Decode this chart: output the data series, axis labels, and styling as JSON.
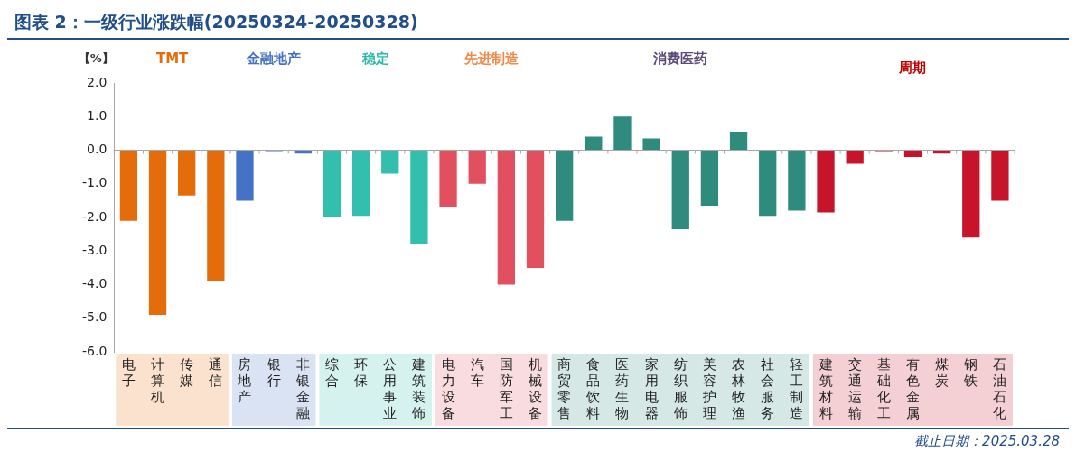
{
  "chart_data": {
    "type": "bar",
    "title": "图表 2：一级行业涨跌幅(20250324-20250328)",
    "ylabel": "【%】",
    "categories": [
      "电子",
      "计算机",
      "传媒",
      "通信",
      "房地产",
      "银行",
      "非银金融",
      "综合",
      "环保",
      "公用事业",
      "建筑装饰",
      "电力设备",
      "汽车",
      "国防军工",
      "机械设备",
      "商贸零售",
      "食品饮料",
      "医药生物",
      "家用电器",
      "纺织服饰",
      "美容护理",
      "农林牧渔",
      "社会服务",
      "轻工制造",
      "建筑材料",
      "交通运输",
      "基础化工",
      "有色金属",
      "煤炭",
      "钢铁",
      "石油石化"
    ],
    "values": [
      -2.1,
      -4.9,
      -1.35,
      -3.9,
      -1.5,
      -0.03,
      -0.1,
      -2.0,
      -1.95,
      -0.7,
      -2.8,
      -1.7,
      -1.0,
      -4.0,
      -3.5,
      -2.1,
      0.4,
      1.0,
      0.35,
      -2.35,
      -1.65,
      0.55,
      -1.95,
      -1.8,
      -1.85,
      -0.4,
      -0.03,
      -0.2,
      -0.1,
      -2.6,
      -1.5
    ],
    "colors": [
      "#e46c0a",
      "#e46c0a",
      "#e46c0a",
      "#e46c0a",
      "#4472c4",
      "#4472c4",
      "#4472c4",
      "#33bfae",
      "#33bfae",
      "#33bfae",
      "#33bfae",
      "#e2505f",
      "#e2505f",
      "#e2505f",
      "#e2505f",
      "#2e8b7e",
      "#2e8b7e",
      "#2e8b7e",
      "#2e8b7e",
      "#2e8b7e",
      "#2e8b7e",
      "#2e8b7e",
      "#2e8b7e",
      "#2e8b7e",
      "#c8142a",
      "#c8142a",
      "#c8142a",
      "#c8142a",
      "#c8142a",
      "#c8142a",
      "#c8142a"
    ],
    "ylim": [
      -6,
      2
    ],
    "yticks": [
      {
        "value": -6,
        "label": "-6.0"
      },
      {
        "value": -5,
        "label": "-5.0"
      },
      {
        "value": -4,
        "label": "-4.0"
      },
      {
        "value": -3,
        "label": "-3.0"
      },
      {
        "value": -2,
        "label": "-2.0"
      },
      {
        "value": -1,
        "label": "-1.0"
      },
      {
        "value": 0,
        "label": "0.0"
      },
      {
        "value": 1,
        "label": "1.0"
      },
      {
        "value": 2,
        "label": "2.0"
      }
    ],
    "ref_lines": [
      {
        "axis": "y",
        "value": 0,
        "color": "#a6a6a6"
      }
    ],
    "grid": false,
    "legend": false,
    "annotations": [
      "TMT",
      "金融地产",
      "稳定",
      "先进制造",
      "消费医药",
      "周期",
      "截止日期：2025.03.28"
    ]
  }
}
